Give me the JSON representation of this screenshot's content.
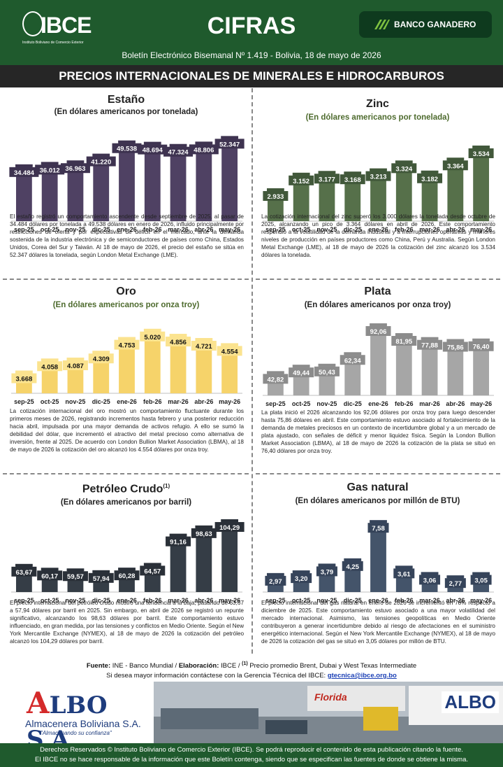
{
  "header": {
    "logo_text": "IBCE",
    "logo_subtext": "Instituto Boliviano de Comercio Exterior",
    "title": "CIFRAS",
    "bank": "BANCO GANADERO",
    "subtitle": "Boletín Electrónico Bisemanal Nº 1.419 - Bolivia, 18 de mayo de 2026"
  },
  "section_title": "PRECIOS INTERNACIONALES DE MINERALES E HIDROCARBUROS",
  "panels": [
    {
      "title": "Estaño",
      "subtitle": "(En dólares americanos por tonelada)",
      "sub_color": "#222222",
      "text": "El estaño registró un comportamiento ascendente desde septiembre de 2025, al pasar de  34.484 dólares por tonelada a 49.538 dólares en enero de 2026, influido principalmente por restricciones de oferta y por expectativas de déficit en el mercado, ante la demanda sostenida de la industria electrónica y de semiconductores de países como China, Estados Unidos, Corea del Sur y Taiwán. Al 18 de mayo de 2026, el precio del estaño se sitúa en 52.347 dólares la tonelada, según London Metal Exchange (LME)."
    },
    {
      "title": "Zinc",
      "subtitle": "(En dólares americanos por tonelada)",
      "sub_color": "#4e6b2e",
      "text": "La cotización internacional del zinc superó los 3.000 dólares la tonelada desde octubre de 2025, alcanzando un pico de 3.364 dólares en abril de 2026. Este comportamiento respondió a la volatilidad de la demanda industrial y a interrupciones operativas y menores niveles de producción en países productores como China, Perú y Australia. Según London Metal Exchange (LME), al 18 de mayo de 2026 la cotización del zinc alcanzó los 3.534 dólares la tonelada."
    },
    {
      "title": "Oro",
      "subtitle": "(En dólares americanos por onza troy)",
      "sub_color": "#4e6b2e",
      "text": "La cotización internacional del oro mostró un comportamiento fluctuante durante los primeros meses de 2026, registrando incrementos hasta febrero y una posterior reducción hacia abril, impulsada por una mayor demanda de activos refugio. A ello se sumó la debilidad del dólar, que incrementó el atractivo del metal precioso como alternativa de inversión, frente al 2025. De acuerdo con London Bullion Market Association (LBMA), al 18 de mayo de 2026 la cotización del oro alcanzó los 4.554 dólares por onza troy."
    },
    {
      "title": "Plata",
      "subtitle": "(En dólares americanos por onza troy)",
      "sub_color": "#222222",
      "text": "La plata inició el 2026 alcanzando los 92,06 dólares por onza troy para luego descender hasta 75,86 dólares en abril. Este comportamiento estuvo asociado al fortalecimiento de la demanda de metales preciosos en un contexto de incertidumbre global y a un mercado de plata ajustado, con señales de déficit y menor liquidez física. Según la London Bullion Market Association (LBMA), al 18 de mayo de 2026 la cotización de la plata se situó en 76,40 dólares por onza troy."
    },
    {
      "title": "Petróleo Crudo",
      "title_sup": "(1)",
      "subtitle": "(En dólares americanos por barril)",
      "sub_color": "#222222",
      "text": "El precio internacional del petróleo crudo mostró una tendencia a la baja, pasando de 63,67 a 57,94 dólares por barril en 2025. Sin embargo, en abril de 2026 se registró un repunte significativo, alcanzando los 98,63 dólares por barril. Este comportamiento estuvo influenciado, en gran medida, por las tensiones y conflictos en Medio Oriente. Según el New York Mercantile Exchange (NYMEX), al 18 de mayo de 2026 la cotización del petróleo alcanzó los 104,29 dólares por barril."
    },
    {
      "title": "Gas natural",
      "subtitle": "(En dólares americanos por millón de BTU)",
      "sub_color": "#222222",
      "text": "El precio internacional del gas natural en enero de 2026 se incrementó en 78% respecto a diciembre de 2025. Este comportamiento estuvo asociado a una mayor volatilidad del mercado internacional. Asimismo, las tensiones geopolíticas en Medio Oriente contribuyeron a generar incertidumbre debido al riesgo de afectaciones en el suministro energético internacional. Según el New York Mercantile Exchange (NYMEX), al 18 de mayo de 2026 la cotización del gas se situó en 3,05 dólares por millón de BTU."
    }
  ],
  "chart_data": [
    {
      "type": "bar",
      "title": "Estaño",
      "categories": [
        "sep-25",
        "oct-25",
        "nov-25",
        "dic-25",
        "ene-26",
        "feb-26",
        "mar-26",
        "abr-26",
        "may-26"
      ],
      "values": [
        34484,
        36012,
        36963,
        41220,
        49538,
        48694,
        47324,
        48806,
        52347
      ],
      "labels": [
        "34.484",
        "36.012",
        "36.963",
        "41.220",
        "49.538",
        "48.694",
        "47.324",
        "48.806",
        "52.347"
      ],
      "color": "#4f4163",
      "label_bg": "#3e3350",
      "label_fg": "#ffffff",
      "ylim": [
        0,
        60000
      ]
    },
    {
      "type": "bar",
      "title": "Zinc",
      "categories": [
        "sep-25",
        "oct-25",
        "nov-25",
        "dic-25",
        "ene-26",
        "feb-26",
        "mar-26",
        "abr-26",
        "may-26"
      ],
      "values": [
        2933,
        3152,
        3177,
        3168,
        3213,
        3324,
        3182,
        3364,
        3534
      ],
      "labels": [
        "2.933",
        "3.152",
        "3.177",
        "3.168",
        "3.213",
        "3.324",
        "3.182",
        "3.364",
        "3.534"
      ],
      "color": "#56704a",
      "label_bg": "#41583a",
      "label_fg": "#ffffff",
      "ylim": [
        2500,
        3800
      ]
    },
    {
      "type": "bar",
      "title": "Oro",
      "categories": [
        "sep-25",
        "oct-25",
        "nov-25",
        "dic-25",
        "ene-26",
        "feb-26",
        "mar-26",
        "abr-26",
        "may-26"
      ],
      "values": [
        3668,
        4058,
        4087,
        4309,
        4753,
        5020,
        4856,
        4721,
        4554
      ],
      "labels": [
        "3.668",
        "4.058",
        "4.087",
        "4.309",
        "4.753",
        "5.020",
        "4.856",
        "4.721",
        "4.554"
      ],
      "color": "#f6d36a",
      "label_bg": "#fbe38f",
      "label_fg": "#111111",
      "ylim": [
        3000,
        5400
      ]
    },
    {
      "type": "bar",
      "title": "Plata",
      "categories": [
        "sep-25",
        "oct-25",
        "nov-25",
        "dic-25",
        "ene-26",
        "feb-26",
        "mar-26",
        "abr-26",
        "may-26"
      ],
      "values": [
        42.82,
        49.44,
        50.43,
        62.34,
        92.06,
        81.95,
        77.88,
        75.86,
        76.4
      ],
      "labels": [
        "42,82",
        "49,44",
        "50,43",
        "62,34",
        "92,06",
        "81,95",
        "77,88",
        "75,86",
        "76,40"
      ],
      "color": "#a6a6a6",
      "label_bg": "#8c8c8c",
      "label_fg": "#ffffff",
      "ylim": [
        20,
        100
      ]
    },
    {
      "type": "bar",
      "title": "Petróleo Crudo",
      "categories": [
        "sep-25",
        "oct-25",
        "nov-25",
        "dic-25",
        "ene-26",
        "feb-26",
        "mar-26",
        "abr-26",
        "may-26"
      ],
      "values": [
        63.67,
        60.17,
        59.57,
        57.94,
        60.28,
        64.57,
        91.16,
        98.63,
        104.29
      ],
      "labels": [
        "63,67",
        "60,17",
        "59,57",
        "57,94",
        "60,28",
        "64,57",
        "91,16",
        "98,63",
        "104,29"
      ],
      "color": "#353d46",
      "label_bg": "#2a3038",
      "label_fg": "#ffffff",
      "ylim": [
        40,
        110
      ]
    },
    {
      "type": "bar",
      "title": "Gas natural",
      "categories": [
        "sep-25",
        "oct-25",
        "nov-25",
        "dic-25",
        "ene-26",
        "feb-26",
        "mar-26",
        "abr-26",
        "may-26"
      ],
      "values": [
        2.97,
        3.2,
        3.79,
        4.25,
        7.58,
        3.61,
        3.06,
        2.77,
        3.05
      ],
      "labels": [
        "2,97",
        "3,20",
        "3,79",
        "4,25",
        "7,58",
        "3,61",
        "3,06",
        "2,77",
        "3,05"
      ],
      "color": "#44546a",
      "label_bg": "#36445a",
      "label_fg": "#ffffff",
      "ylim": [
        1.5,
        8.2
      ]
    }
  ],
  "footer": {
    "source_label": "Fuente:",
    "source_text": " INE - Banco Mundial / ",
    "elab_label": "Elaboración:",
    "elab_text": " IBCE / ",
    "note_sup": "(1)",
    "note_text": " Precio promedio Brent, Dubai y West Texas Intermediate",
    "info_text": "Si desea mayor información contáctese con la Gerencia Técnica del IBCE: ",
    "info_email": "gtecnica@ibce.org.bo"
  },
  "ad": {
    "brand_a": "A",
    "brand_rest": "LBO S.A.",
    "name": "Almacenera Boliviana S.A.",
    "slogan": "\"Almacenando su confianza\"",
    "right_logo": "ALBO",
    "truck_text": "Florida"
  },
  "copyright": {
    "line1": "Derechos Reservados © Instituto Boliviano de Comercio Exterior (IBCE). Se podrá reproducir el contenido de esta publicación citando la fuente.",
    "line2": "El IBCE no se hace responsable de la información que este Boletín contenga, siendo que se especifican las fuentes de donde se obtiene la misma."
  }
}
